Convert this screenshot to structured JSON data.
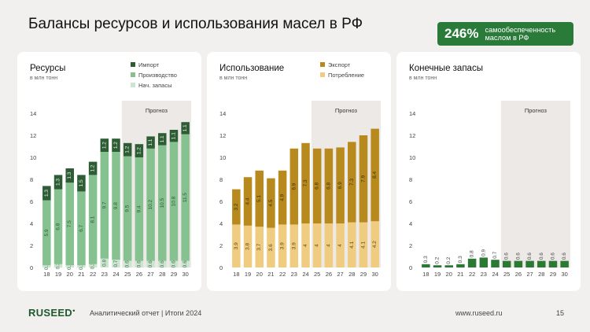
{
  "header": {
    "title": "Балансы ресурсов и использования масел в РФ",
    "badge_value": "246%",
    "badge_line1": "самообеспеченность",
    "badge_line2": "маслом в РФ"
  },
  "footer": {
    "logo": "RUSEED",
    "report": "Аналитический отчет  |  Итоги 2024",
    "url": "www.ruseed.ru",
    "page": "15"
  },
  "colors": {
    "import": "#2d5c35",
    "production": "#86c190",
    "start_stocks": "#cde5d0",
    "export": "#b88a1e",
    "consumption": "#f0cc80",
    "stocks": "#2b7a34",
    "forecast_bg": "#ede9e6"
  },
  "chart_data": [
    {
      "type": "bar",
      "stacked": true,
      "title": "Ресурсы",
      "subtitle": "в млн тонн",
      "forecast_label": "Прогноз",
      "forecast_from": "25",
      "categories": [
        "18",
        "19",
        "20",
        "21",
        "22",
        "23",
        "24",
        "25",
        "26",
        "27",
        "28",
        "29",
        "30"
      ],
      "ylim": [
        0,
        14
      ],
      "yticks": [
        0,
        2,
        4,
        6,
        8,
        10,
        12,
        14
      ],
      "legend": [
        "Импорт",
        "Производство",
        "Нач. запасы"
      ],
      "series": [
        {
          "name": "Нач. запасы",
          "key": "start_stocks",
          "values": [
            0.2,
            0.3,
            0.2,
            0.2,
            0.3,
            0.8,
            0.7,
            0.6,
            0.6,
            0.6,
            0.6,
            0.6,
            0.6
          ]
        },
        {
          "name": "Производство",
          "key": "production",
          "values": [
            5.9,
            6.8,
            7.5,
            6.7,
            8.1,
            9.7,
            9.8,
            9.5,
            9.4,
            10.2,
            10.5,
            10.8,
            11.5
          ]
        },
        {
          "name": "Импорт",
          "key": "import",
          "values": [
            1.3,
            1.3,
            1.3,
            1.5,
            1.2,
            1.2,
            1.2,
            1.2,
            1.2,
            1.1,
            1.1,
            1.1,
            1.1
          ]
        }
      ]
    },
    {
      "type": "bar",
      "stacked": true,
      "title": "Использование",
      "subtitle": "в млн тонн",
      "forecast_label": "Прогноз",
      "forecast_from": "25",
      "categories": [
        "18",
        "19",
        "20",
        "21",
        "22",
        "23",
        "24",
        "25",
        "26",
        "27",
        "28",
        "29",
        "30"
      ],
      "ylim": [
        0,
        14
      ],
      "yticks": [
        0,
        2,
        4,
        6,
        8,
        10,
        12,
        14
      ],
      "legend": [
        "Экспорт",
        "Потребление"
      ],
      "series": [
        {
          "name": "Потребление",
          "key": "consumption",
          "values": [
            3.9,
            3.8,
            3.7,
            3.6,
            3.9,
            3.9,
            4.0,
            4.0,
            4.0,
            4.0,
            4.1,
            4.1,
            4.2
          ]
        },
        {
          "name": "Экспорт",
          "key": "export",
          "values": [
            3.2,
            4.4,
            5.1,
            4.5,
            4.9,
            6.9,
            7.3,
            6.8,
            6.8,
            6.9,
            7.3,
            7.9,
            8.4
          ]
        }
      ]
    },
    {
      "type": "bar",
      "stacked": false,
      "title": "Конечные запасы",
      "subtitle": "в млн тонн",
      "forecast_label": "Прогноз",
      "forecast_from": "25",
      "categories": [
        "18",
        "19",
        "20",
        "21",
        "22",
        "23",
        "24",
        "25",
        "26",
        "27",
        "28",
        "29",
        "30"
      ],
      "ylim": [
        0,
        14
      ],
      "yticks": [
        0,
        2,
        4,
        6,
        8,
        10,
        12,
        14
      ],
      "legend": [],
      "series": [
        {
          "name": "Конечные запасы",
          "key": "stocks",
          "values": [
            0.3,
            0.2,
            0.2,
            0.3,
            0.8,
            0.9,
            0.7,
            0.6,
            0.6,
            0.6,
            0.6,
            0.6,
            0.6
          ]
        }
      ]
    }
  ]
}
